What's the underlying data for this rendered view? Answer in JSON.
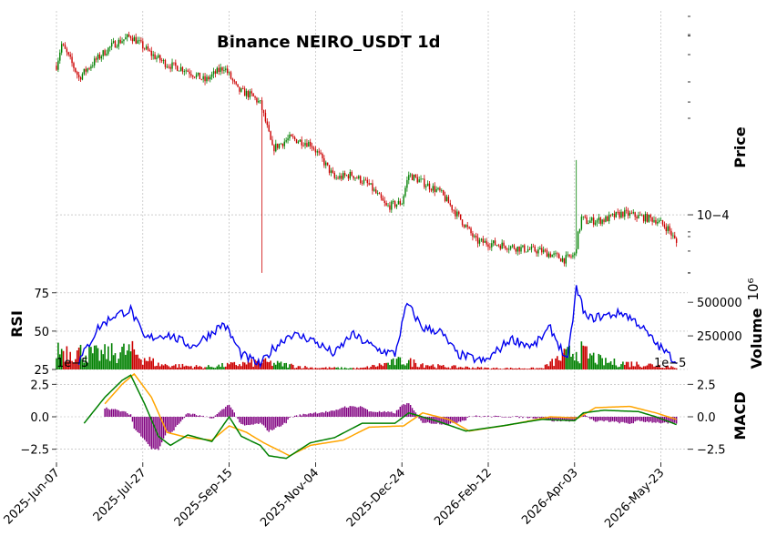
{
  "chart_data": {
    "title": "Binance NEIRO_USDT 1d",
    "x_ticks": [
      "2025-Jun-07",
      "2025-Jul-27",
      "2025-Sep-15",
      "2025-Nov-04",
      "2025-Dec-24",
      "2026-Feb-12",
      "2026-Apr-03",
      "2026-May-23"
    ],
    "date_range": [
      "2025-06-07",
      "2026-06-01"
    ],
    "colors": {
      "up": "#008000",
      "down": "#cc0000",
      "rsi": "#0000ee",
      "macd": "#008000",
      "signal": "#ffa500",
      "hist": "#800080"
    },
    "panels": [
      {
        "name": "price",
        "type": "candlestick",
        "ylabel": "Price",
        "yscale": "log",
        "ylim": [
          6.8e-05,
          0.00035
        ],
        "ytick_labels": [
          {
            "value": 0.0001,
            "label": "10−4"
          }
        ],
        "anchors": [
          {
            "date": "2025-06-07",
            "price": 0.00025
          },
          {
            "date": "2025-06-10",
            "price": 0.000285
          },
          {
            "date": "2025-06-20",
            "price": 0.000232
          },
          {
            "date": "2025-07-01",
            "price": 0.000262
          },
          {
            "date": "2025-07-10",
            "price": 0.000285
          },
          {
            "date": "2025-07-20",
            "price": 0.0003
          },
          {
            "date": "2025-08-01",
            "price": 0.000268
          },
          {
            "date": "2025-08-10",
            "price": 0.000252
          },
          {
            "date": "2025-08-20",
            "price": 0.000245
          },
          {
            "date": "2025-09-01",
            "price": 0.000228
          },
          {
            "date": "2025-09-12",
            "price": 0.000248
          },
          {
            "date": "2025-09-20",
            "price": 0.000215
          },
          {
            "date": "2025-09-28",
            "price": 0.000208
          },
          {
            "date": "2025-10-03",
            "price": 0.000198
          },
          {
            "date": "2025-10-10",
            "price": 0.00015
          },
          {
            "date": "2025-10-20",
            "price": 0.00016
          },
          {
            "date": "2025-11-01",
            "price": 0.000155
          },
          {
            "date": "2025-11-15",
            "price": 0.000125
          },
          {
            "date": "2025-11-25",
            "price": 0.000128
          },
          {
            "date": "2025-12-05",
            "price": 0.00012
          },
          {
            "date": "2025-12-15",
            "price": 0.000105
          },
          {
            "date": "2025-12-24",
            "price": 0.000108
          },
          {
            "date": "2025-12-28",
            "price": 0.000128
          },
          {
            "date": "2026-01-05",
            "price": 0.000122
          },
          {
            "date": "2026-01-15",
            "price": 0.000115
          },
          {
            "date": "2026-01-25",
            "price": 0.0001
          },
          {
            "date": "2026-02-05",
            "price": 8.5e-05
          },
          {
            "date": "2026-02-20",
            "price": 8.3e-05
          },
          {
            "date": "2026-03-05",
            "price": 8.1e-05
          },
          {
            "date": "2026-03-15",
            "price": 8e-05
          },
          {
            "date": "2026-03-28",
            "price": 7.6e-05
          },
          {
            "date": "2026-04-03",
            "price": 7.8e-05
          },
          {
            "date": "2026-04-07",
            "price": 9.8e-05
          },
          {
            "date": "2026-04-10",
            "price": 9.6e-05
          },
          {
            "date": "2026-04-20",
            "price": 9.7e-05
          },
          {
            "date": "2026-05-01",
            "price": 0.000101
          },
          {
            "date": "2026-05-10",
            "price": 9.9e-05
          },
          {
            "date": "2026-05-20",
            "price": 9.7e-05
          },
          {
            "date": "2026-05-27",
            "price": 9.2e-05
          },
          {
            "date": "2026-06-01",
            "price": 8.4e-05
          }
        ],
        "notable_wicks": [
          {
            "date": "2025-10-04",
            "low": 7e-05
          },
          {
            "date": "2026-04-04",
            "high": 0.00014
          }
        ]
      },
      {
        "name": "volume",
        "type": "bar",
        "ylabel": "Volume",
        "scale_label": "10⁶",
        "ylim": [
          0,
          650000
        ],
        "ytick_labels": [
          {
            "value": 250000,
            "label": "250000"
          },
          {
            "value": 500000,
            "label": "500000"
          }
        ],
        "anchors": [
          {
            "date": "2025-06-07",
            "volume": 170000
          },
          {
            "date": "2025-07-01",
            "volume": 120000
          },
          {
            "date": "2025-07-20",
            "volume": 150000
          },
          {
            "date": "2025-08-05",
            "volume": 40000
          },
          {
            "date": "2025-09-01",
            "volume": 20000
          },
          {
            "date": "2025-10-04",
            "volume": 60000
          },
          {
            "date": "2025-11-01",
            "volume": 15000
          },
          {
            "date": "2025-12-01",
            "volume": 10000
          },
          {
            "date": "2025-12-24",
            "volume": 70000
          },
          {
            "date": "2026-01-15",
            "volume": 25000
          },
          {
            "date": "2026-02-15",
            "volume": 10000
          },
          {
            "date": "2026-03-15",
            "volume": 10000
          },
          {
            "date": "2026-04-04",
            "volume": 160000
          },
          {
            "date": "2026-04-20",
            "volume": 60000
          },
          {
            "date": "2026-05-15",
            "volume": 40000
          },
          {
            "date": "2026-06-01",
            "volume": 20000
          }
        ]
      },
      {
        "name": "rsi",
        "type": "line",
        "ylabel": "RSI",
        "ylim": [
          25,
          82
        ],
        "ytick_labels": [
          {
            "value": 25,
            "label": "25"
          },
          {
            "value": 50,
            "label": "50"
          },
          {
            "value": 75,
            "label": "75"
          }
        ],
        "anchors": [
          {
            "date": "2025-06-20",
            "value": 30
          },
          {
            "date": "2025-07-01",
            "value": 52
          },
          {
            "date": "2025-07-10",
            "value": 60
          },
          {
            "date": "2025-07-20",
            "value": 64
          },
          {
            "date": "2025-07-28",
            "value": 45
          },
          {
            "date": "2025-08-10",
            "value": 48
          },
          {
            "date": "2025-08-25",
            "value": 40
          },
          {
            "date": "2025-09-12",
            "value": 55
          },
          {
            "date": "2025-09-22",
            "value": 35
          },
          {
            "date": "2025-10-03",
            "value": 28
          },
          {
            "date": "2025-10-10",
            "value": 38
          },
          {
            "date": "2025-10-20",
            "value": 48
          },
          {
            "date": "2025-11-01",
            "value": 45
          },
          {
            "date": "2025-11-15",
            "value": 35
          },
          {
            "date": "2025-11-25",
            "value": 48
          },
          {
            "date": "2025-12-10",
            "value": 38
          },
          {
            "date": "2025-12-20",
            "value": 35
          },
          {
            "date": "2025-12-27",
            "value": 68
          },
          {
            "date": "2026-01-05",
            "value": 52
          },
          {
            "date": "2026-01-15",
            "value": 50
          },
          {
            "date": "2026-01-25",
            "value": 35
          },
          {
            "date": "2026-02-10",
            "value": 30
          },
          {
            "date": "2026-02-25",
            "value": 45
          },
          {
            "date": "2026-03-10",
            "value": 40
          },
          {
            "date": "2026-03-20",
            "value": 52
          },
          {
            "date": "2026-03-30",
            "value": 30
          },
          {
            "date": "2026-04-04",
            "value": 78
          },
          {
            "date": "2026-04-10",
            "value": 58
          },
          {
            "date": "2026-04-20",
            "value": 60
          },
          {
            "date": "2026-05-01",
            "value": 62
          },
          {
            "date": "2026-05-10",
            "value": 55
          },
          {
            "date": "2026-05-20",
            "value": 42
          },
          {
            "date": "2026-06-01",
            "value": 30
          }
        ]
      },
      {
        "name": "macd",
        "type": "line",
        "ylabel": "MACD",
        "offset_label": "1e−5",
        "ylim": [
          -3.5,
          3.5
        ],
        "ytick_labels": [
          {
            "value": -2.5,
            "label": "−2.5"
          },
          {
            "value": 0,
            "label": "0.0"
          },
          {
            "value": 2.5,
            "label": "2.5"
          }
        ],
        "macd": [
          {
            "date": "2025-06-23",
            "value": -0.5
          },
          {
            "date": "2025-07-05",
            "value": 1.5
          },
          {
            "date": "2025-07-15",
            "value": 2.8
          },
          {
            "date": "2025-07-20",
            "value": 3.2
          },
          {
            "date": "2025-07-28",
            "value": 1.0
          },
          {
            "date": "2025-08-05",
            "value": -1.5
          },
          {
            "date": "2025-08-12",
            "value": -2.2
          },
          {
            "date": "2025-08-22",
            "value": -1.4
          },
          {
            "date": "2025-09-05",
            "value": -1.9
          },
          {
            "date": "2025-09-15",
            "value": 0.0
          },
          {
            "date": "2025-09-22",
            "value": -1.5
          },
          {
            "date": "2025-10-03",
            "value": -2.2
          },
          {
            "date": "2025-10-08",
            "value": -3.0
          },
          {
            "date": "2025-10-18",
            "value": -3.2
          },
          {
            "date": "2025-11-01",
            "value": -2.0
          },
          {
            "date": "2025-11-15",
            "value": -1.6
          },
          {
            "date": "2025-12-01",
            "value": -0.5
          },
          {
            "date": "2025-12-20",
            "value": -0.5
          },
          {
            "date": "2025-12-28",
            "value": 0.3
          },
          {
            "date": "2026-01-15",
            "value": -0.4
          },
          {
            "date": "2026-01-30",
            "value": -1.1
          },
          {
            "date": "2026-02-20",
            "value": -0.7
          },
          {
            "date": "2026-03-15",
            "value": -0.2
          },
          {
            "date": "2026-04-03",
            "value": -0.3
          },
          {
            "date": "2026-04-08",
            "value": 0.3
          },
          {
            "date": "2026-04-20",
            "value": 0.5
          },
          {
            "date": "2026-05-10",
            "value": 0.4
          },
          {
            "date": "2026-05-20",
            "value": 0.0
          },
          {
            "date": "2026-06-01",
            "value": -0.6
          }
        ],
        "signal": [
          {
            "date": "2025-07-05",
            "value": 1.0
          },
          {
            "date": "2025-07-15",
            "value": 2.5
          },
          {
            "date": "2025-07-22",
            "value": 3.3
          },
          {
            "date": "2025-08-01",
            "value": 1.5
          },
          {
            "date": "2025-08-10",
            "value": -1.2
          },
          {
            "date": "2025-08-22",
            "value": -1.6
          },
          {
            "date": "2025-09-05",
            "value": -1.8
          },
          {
            "date": "2025-09-15",
            "value": -0.7
          },
          {
            "date": "2025-09-25",
            "value": -1.2
          },
          {
            "date": "2025-10-05",
            "value": -2.0
          },
          {
            "date": "2025-10-20",
            "value": -3.0
          },
          {
            "date": "2025-11-01",
            "value": -2.2
          },
          {
            "date": "2025-11-20",
            "value": -1.8
          },
          {
            "date": "2025-12-05",
            "value": -0.8
          },
          {
            "date": "2025-12-25",
            "value": -0.7
          },
          {
            "date": "2026-01-05",
            "value": 0.3
          },
          {
            "date": "2026-01-20",
            "value": -0.2
          },
          {
            "date": "2026-02-01",
            "value": -1.1
          },
          {
            "date": "2026-02-25",
            "value": -0.6
          },
          {
            "date": "2026-03-20",
            "value": 0.0
          },
          {
            "date": "2026-04-05",
            "value": -0.1
          },
          {
            "date": "2026-04-15",
            "value": 0.7
          },
          {
            "date": "2026-05-05",
            "value": 0.8
          },
          {
            "date": "2026-05-20",
            "value": 0.3
          },
          {
            "date": "2026-06-01",
            "value": -0.2
          }
        ]
      }
    ]
  }
}
